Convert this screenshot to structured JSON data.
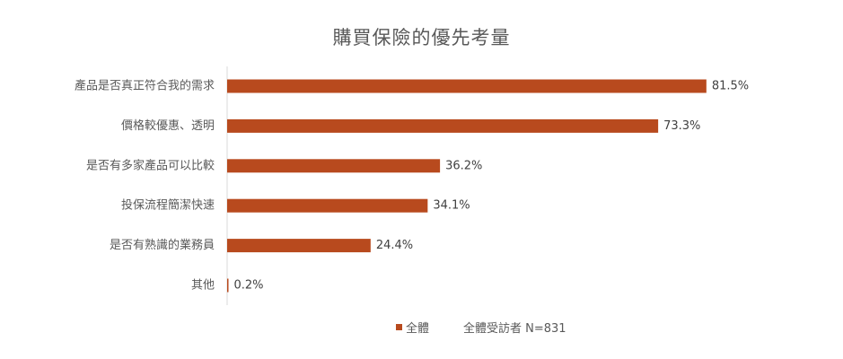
{
  "chart_data": {
    "type": "bar",
    "orientation": "horizontal",
    "title": "購買保險的優先考量",
    "categories": [
      "產品是否真正符合我的需求",
      "價格較優惠、透明",
      "是否有多家產品可以比較",
      "投保流程簡潔快速",
      "是否有熟識的業務員",
      "其他"
    ],
    "series": [
      {
        "name": "全體",
        "values": [
          81.5,
          73.3,
          36.2,
          34.1,
          24.4,
          0.2
        ],
        "labels": [
          "81.5%",
          "73.3%",
          "36.2%",
          "34.1%",
          "24.4%",
          "0.2%"
        ]
      }
    ],
    "xlim": [
      0,
      100
    ],
    "grid": false,
    "legend": "bottom",
    "note": "全體受訪者 N=831"
  },
  "colors": {
    "bar": "#B84A1E",
    "axis": "#D9D9D9"
  }
}
